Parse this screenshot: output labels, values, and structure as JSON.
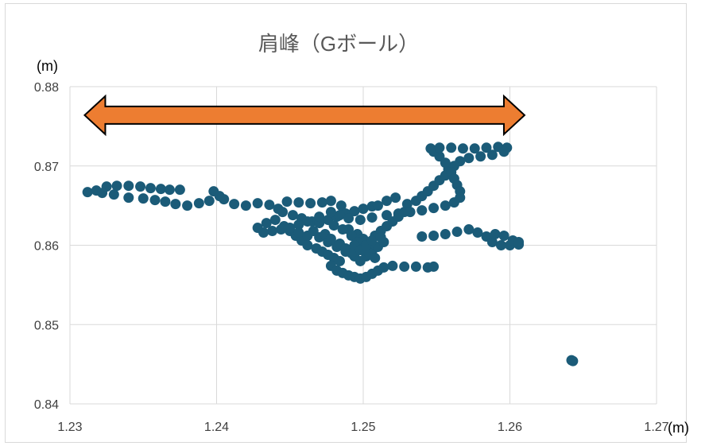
{
  "chart_data": {
    "type": "scatter",
    "title": "肩峰（Gボール）",
    "xlabel": "",
    "ylabel": "",
    "x_unit": "(m)",
    "y_unit": "(m)",
    "xlim": [
      1.23,
      1.27
    ],
    "ylim": [
      0.84,
      0.88
    ],
    "x_ticks": [
      "1.23",
      "1.24",
      "1.25",
      "1.26",
      "1.27"
    ],
    "y_ticks": [
      "0.84",
      "0.85",
      "0.86",
      "0.87",
      "0.88"
    ],
    "grid": true,
    "legend": "none",
    "marker_color": "#1b5b78",
    "annotation": {
      "type": "double-arrow",
      "color": "#ed7d31",
      "x_start": 1.231,
      "x_end": 1.261,
      "y": 0.8764
    },
    "series": [
      {
        "points": [
          [
            1.2312,
            0.8667
          ],
          [
            1.2318,
            0.8669
          ],
          [
            1.2325,
            0.8674
          ],
          [
            1.2332,
            0.8675
          ],
          [
            1.234,
            0.8675
          ],
          [
            1.2348,
            0.8674
          ],
          [
            1.2355,
            0.8672
          ],
          [
            1.2362,
            0.8671
          ],
          [
            1.2368,
            0.867
          ],
          [
            1.2375,
            0.867
          ],
          [
            1.2322,
            0.8666
          ],
          [
            1.233,
            0.8664
          ],
          [
            1.234,
            0.866
          ],
          [
            1.235,
            0.8659
          ],
          [
            1.2358,
            0.8657
          ],
          [
            1.2365,
            0.8655
          ],
          [
            1.2372,
            0.8652
          ],
          [
            1.238,
            0.865
          ],
          [
            1.2388,
            0.8653
          ],
          [
            1.2395,
            0.8656
          ],
          [
            1.2402,
            0.8662
          ],
          [
            1.2398,
            0.8668
          ],
          [
            1.2405,
            0.8658
          ],
          [
            1.2412,
            0.8652
          ],
          [
            1.242,
            0.865
          ],
          [
            1.2428,
            0.8653
          ],
          [
            1.2436,
            0.8651
          ],
          [
            1.2442,
            0.8646
          ],
          [
            1.2445,
            0.8642
          ],
          [
            1.2448,
            0.8655
          ],
          [
            1.2456,
            0.8654
          ],
          [
            1.2464,
            0.8653
          ],
          [
            1.2472,
            0.8654
          ],
          [
            1.2478,
            0.8656
          ],
          [
            1.2485,
            0.865
          ],
          [
            1.2452,
            0.8638
          ],
          [
            1.2458,
            0.8634
          ],
          [
            1.2465,
            0.863
          ],
          [
            1.247,
            0.8628
          ],
          [
            1.2476,
            0.8632
          ],
          [
            1.2482,
            0.8636
          ],
          [
            1.2488,
            0.864
          ],
          [
            1.2494,
            0.8643
          ],
          [
            1.25,
            0.8646
          ],
          [
            1.2506,
            0.8649
          ],
          [
            1.2446,
            0.8624
          ],
          [
            1.245,
            0.8618
          ],
          [
            1.2454,
            0.8612
          ],
          [
            1.2458,
            0.8606
          ],
          [
            1.2462,
            0.86
          ],
          [
            1.2468,
            0.8596
          ],
          [
            1.2472,
            0.8592
          ],
          [
            1.2476,
            0.8588
          ],
          [
            1.248,
            0.8584
          ],
          [
            1.2484,
            0.858
          ],
          [
            1.2478,
            0.8574
          ],
          [
            1.2482,
            0.8568
          ],
          [
            1.2486,
            0.8565
          ],
          [
            1.249,
            0.8562
          ],
          [
            1.2494,
            0.856
          ],
          [
            1.2498,
            0.8558
          ],
          [
            1.2502,
            0.856
          ],
          [
            1.2506,
            0.8564
          ],
          [
            1.251,
            0.8568
          ],
          [
            1.2514,
            0.8572
          ],
          [
            1.252,
            0.8574
          ],
          [
            1.2528,
            0.8573
          ],
          [
            1.2536,
            0.8573
          ],
          [
            1.2544,
            0.8572
          ],
          [
            1.2548,
            0.8573
          ],
          [
            1.247,
            0.861
          ],
          [
            1.2476,
            0.8604
          ],
          [
            1.2482,
            0.8598
          ],
          [
            1.2488,
            0.8592
          ],
          [
            1.2494,
            0.8586
          ],
          [
            1.2498,
            0.858
          ],
          [
            1.2502,
            0.8586
          ],
          [
            1.2506,
            0.8592
          ],
          [
            1.251,
            0.8598
          ],
          [
            1.2514,
            0.8604
          ],
          [
            1.249,
            0.862
          ],
          [
            1.2496,
            0.8614
          ],
          [
            1.25,
            0.8608
          ],
          [
            1.2504,
            0.8602
          ],
          [
            1.2508,
            0.8612
          ],
          [
            1.2512,
            0.8618
          ],
          [
            1.2516,
            0.8624
          ],
          [
            1.252,
            0.863
          ],
          [
            1.2524,
            0.8636
          ],
          [
            1.2528,
            0.8642
          ],
          [
            1.251,
            0.865
          ],
          [
            1.2516,
            0.8656
          ],
          [
            1.2522,
            0.866
          ],
          [
            1.253,
            0.8652
          ],
          [
            1.2536,
            0.8656
          ],
          [
            1.254,
            0.8662
          ],
          [
            1.2544,
            0.8668
          ],
          [
            1.2548,
            0.8675
          ],
          [
            1.2552,
            0.8682
          ],
          [
            1.2556,
            0.8688
          ],
          [
            1.2558,
            0.8696
          ],
          [
            1.2556,
            0.8704
          ],
          [
            1.2552,
            0.8712
          ],
          [
            1.2548,
            0.8718
          ],
          [
            1.2546,
            0.8722
          ],
          [
            1.2552,
            0.8723
          ],
          [
            1.256,
            0.8723
          ],
          [
            1.2568,
            0.8722
          ],
          [
            1.2576,
            0.8722
          ],
          [
            1.2584,
            0.8723
          ],
          [
            1.2592,
            0.8724
          ],
          [
            1.2598,
            0.8723
          ],
          [
            1.2596,
            0.8718
          ],
          [
            1.2588,
            0.8714
          ],
          [
            1.258,
            0.8712
          ],
          [
            1.2572,
            0.871
          ],
          [
            1.2566,
            0.8706
          ],
          [
            1.2562,
            0.87
          ],
          [
            1.256,
            0.8692
          ],
          [
            1.2562,
            0.8684
          ],
          [
            1.2564,
            0.8676
          ],
          [
            1.2566,
            0.8668
          ],
          [
            1.2566,
            0.866
          ],
          [
            1.2562,
            0.8654
          ],
          [
            1.2556,
            0.865
          ],
          [
            1.2548,
            0.8647
          ],
          [
            1.254,
            0.8644
          ],
          [
            1.2532,
            0.8642
          ],
          [
            1.2524,
            0.864
          ],
          [
            1.2516,
            0.8638
          ],
          [
            1.2506,
            0.8635
          ],
          [
            1.2498,
            0.8632
          ],
          [
            1.249,
            0.8634
          ],
          [
            1.2484,
            0.8638
          ],
          [
            1.2478,
            0.8642
          ],
          [
            1.247,
            0.8636
          ],
          [
            1.2462,
            0.863
          ],
          [
            1.2456,
            0.8626
          ],
          [
            1.245,
            0.8622
          ],
          [
            1.2444,
            0.862
          ],
          [
            1.2438,
            0.8618
          ],
          [
            1.2432,
            0.8616
          ],
          [
            1.2428,
            0.8622
          ],
          [
            1.2434,
            0.8628
          ],
          [
            1.244,
            0.8632
          ],
          [
            1.254,
            0.8611
          ],
          [
            1.2548,
            0.8612
          ],
          [
            1.2556,
            0.8614
          ],
          [
            1.2564,
            0.8617
          ],
          [
            1.2572,
            0.862
          ],
          [
            1.2578,
            0.8616
          ],
          [
            1.2584,
            0.8611
          ],
          [
            1.2588,
            0.8604
          ],
          [
            1.2594,
            0.86
          ],
          [
            1.26,
            0.86
          ],
          [
            1.2606,
            0.8601
          ],
          [
            1.259,
            0.8614
          ],
          [
            1.2596,
            0.8612
          ],
          [
            1.2602,
            0.8606
          ],
          [
            1.2606,
            0.8604
          ],
          [
            1.2642,
            0.8455
          ],
          [
            1.2643,
            0.8454
          ],
          [
            1.248,
            0.8625
          ],
          [
            1.2486,
            0.862
          ],
          [
            1.2492,
            0.8612
          ],
          [
            1.2496,
            0.8604
          ],
          [
            1.25,
            0.8596
          ],
          [
            1.2504,
            0.859
          ],
          [
            1.2508,
            0.8584
          ],
          [
            1.2484,
            0.8602
          ],
          [
            1.2488,
            0.8596
          ],
          [
            1.2492,
            0.859
          ],
          [
            1.2456,
            0.8616
          ],
          [
            1.2462,
            0.8612
          ],
          [
            1.2466,
            0.8618
          ],
          [
            1.2474,
            0.8614
          ],
          [
            1.2478,
            0.8608
          ],
          [
            1.2494,
            0.86
          ],
          [
            1.2498,
            0.8594
          ],
          [
            1.2502,
            0.86
          ],
          [
            1.2506,
            0.8606
          ],
          [
            1.2512,
            0.861
          ]
        ]
      }
    ]
  }
}
